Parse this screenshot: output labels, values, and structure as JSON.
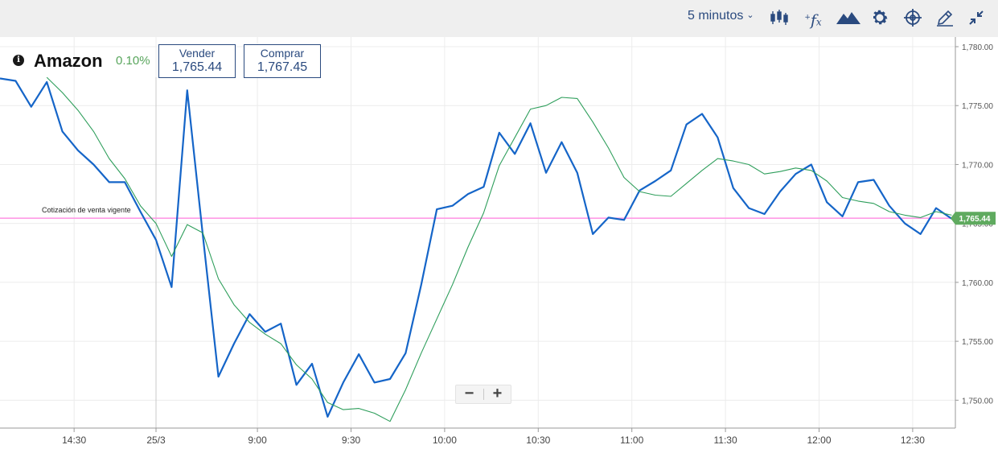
{
  "toolbar": {
    "interval_label": "5 minutos",
    "icons": [
      "candlestick-icon",
      "function-icon",
      "mountain-icon",
      "gear-icon",
      "crosshair-icon",
      "pencil-icon",
      "compress-icon"
    ],
    "icon_color": "#2a4a7f"
  },
  "asset": {
    "name": "Amazon",
    "change": "0.10%",
    "change_color": "#58a55c"
  },
  "prices": {
    "sell_label": "Vender",
    "sell_value": "1,765.44",
    "buy_label": "Comprar",
    "buy_value": "1,767.45"
  },
  "zoom": {
    "minus": "−",
    "plus": "+"
  },
  "chart_data": {
    "type": "line",
    "ylim": [
      1748,
      1781
    ],
    "y_ticks": [
      1750,
      1755,
      1760,
      1765,
      1770,
      1775,
      1780
    ],
    "y_tick_labels": [
      "1,750.00",
      "1,755.00",
      "1,760.00",
      "1,765.00",
      "1,770.00",
      "1,775.00",
      "1,780.00"
    ],
    "x_tick_labels": [
      "14:30",
      "25/3",
      "9:00",
      "9:30",
      "10:00",
      "10:30",
      "11:00",
      "11:30",
      "12:00",
      "12:30"
    ],
    "grid": true,
    "session_separator_index": 16,
    "series": [
      {
        "color": "#1565c8",
        "width": 2.2,
        "values": [
          1777.3,
          1777.1,
          1774.9,
          1777.0,
          1772.8,
          1771.2,
          1770.0,
          1768.5,
          1768.5,
          1766.0,
          1763.6,
          1759.6,
          1776.3,
          1764.0,
          1752.0,
          1754.8,
          1757.3,
          1755.8,
          1756.5,
          1751.3,
          1753.1,
          1748.6,
          1751.5,
          1753.9,
          1751.5,
          1751.8,
          1754.0,
          1759.8,
          1766.2,
          1766.5,
          1767.5,
          1768.1,
          1772.7,
          1770.9,
          1773.5,
          1769.3,
          1771.9,
          1769.3,
          1764.1,
          1765.5,
          1765.3,
          1767.8,
          1768.6,
          1769.5,
          1773.4,
          1774.3,
          1772.3,
          1768.0,
          1766.3,
          1765.8,
          1767.7,
          1769.2,
          1770.0,
          1766.8,
          1765.6,
          1768.5,
          1768.7,
          1766.5,
          1765.0,
          1764.1,
          1766.3,
          1765.4
        ]
      },
      {
        "color": "#2e9e5b",
        "width": 1.1,
        "values": [
          null,
          null,
          null,
          1777.4,
          1776.1,
          1774.6,
          1772.8,
          1770.5,
          1768.8,
          1766.5,
          1765.0,
          1762.2,
          1764.9,
          1764.2,
          1760.3,
          1758.1,
          1756.6,
          1755.6,
          1754.8,
          1753.0,
          1751.8,
          1749.8,
          1749.2,
          1749.3,
          1748.9,
          1748.2,
          1750.9,
          1754.0,
          1756.9,
          1759.8,
          1763.0,
          1765.9,
          1769.9,
          1772.3,
          1774.7,
          1775.0,
          1775.7,
          1775.6,
          1773.6,
          1771.4,
          1768.9,
          1767.7,
          1767.4,
          1767.3,
          1768.4,
          1769.5,
          1770.5,
          1770.3,
          1770.0,
          1769.2,
          1769.4,
          1769.7,
          1769.5,
          1768.6,
          1767.2,
          1766.9,
          1766.7,
          1766.0,
          1765.7,
          1765.5,
          1766.0,
          1765.7
        ]
      }
    ],
    "reference_line": {
      "value": 1765.44,
      "label": "Cotización de venta vigente",
      "color": "#ff9be6"
    },
    "current_price_label": {
      "text": "1,765.44",
      "color": "#5faa5f"
    }
  }
}
